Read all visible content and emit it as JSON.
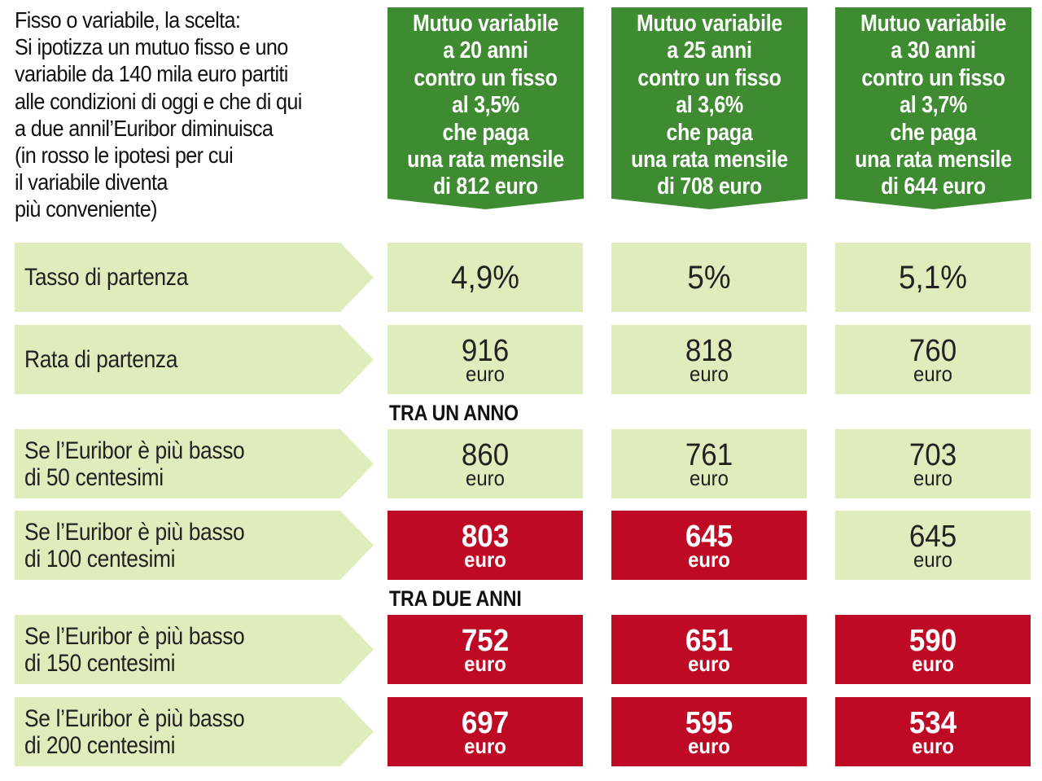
{
  "intro_lines": [
    "Fisso o variabile, la scelta:",
    "Si ipotizza un mutuo fisso e uno",
    "variabile da 140 mila euro partiti",
    "alle condizioni di oggi e che di qui",
    "a due annil’Euribor diminuisca",
    "(in rosso le ipotesi per cui",
    "il variabile diventa",
    "più conveniente)"
  ],
  "columns": [
    {
      "lines": [
        "Mutuo variabile",
        "a 20 anni",
        "contro un fisso",
        "al 3,5%",
        "che paga",
        "una rata mensile",
        "di 812 euro"
      ]
    },
    {
      "lines": [
        "Mutuo variabile",
        "a 25 anni",
        "contro un fisso",
        "al 3,6%",
        "che paga",
        "una rata mensile",
        "di 708 euro"
      ]
    },
    {
      "lines": [
        "Mutuo variabile",
        "a 30 anni",
        "contro un fisso",
        "al 3,7%",
        "che paga",
        "una rata mensile",
        "di 644 euro"
      ]
    }
  ],
  "unit": "euro",
  "sections": {
    "one_year": "TRA UN ANNO",
    "two_years": "TRA DUE ANNI"
  },
  "rows": [
    {
      "label": [
        "Tasso di partenza"
      ],
      "cells": [
        {
          "value": "4,9%",
          "highlight": false
        },
        {
          "value": "5%",
          "highlight": false
        },
        {
          "value": "5,1%",
          "highlight": false
        }
      ]
    },
    {
      "label": [
        "Rata di partenza"
      ],
      "cells": [
        {
          "value": "916",
          "highlight": false
        },
        {
          "value": "818",
          "highlight": false
        },
        {
          "value": "760",
          "highlight": false
        }
      ]
    },
    {
      "label": [
        "Se l’Euribor è più basso",
        "di 50 centesimi"
      ],
      "cells": [
        {
          "value": "860",
          "highlight": false
        },
        {
          "value": "761",
          "highlight": false
        },
        {
          "value": "703",
          "highlight": false
        }
      ]
    },
    {
      "label": [
        "Se l’Euribor è più basso",
        "di 100 centesimi"
      ],
      "cells": [
        {
          "value": "803",
          "highlight": true
        },
        {
          "value": "645",
          "highlight": true
        },
        {
          "value": "645",
          "highlight": false
        }
      ]
    },
    {
      "label": [
        "Se l’Euribor è più basso",
        "di 150 centesimi"
      ],
      "cells": [
        {
          "value": "752",
          "highlight": true
        },
        {
          "value": "651",
          "highlight": true
        },
        {
          "value": "590",
          "highlight": true
        }
      ]
    },
    {
      "label": [
        "Se l’Euribor è più basso",
        "di 200 centesimi"
      ],
      "cells": [
        {
          "value": "697",
          "highlight": true
        },
        {
          "value": "595",
          "highlight": true
        },
        {
          "value": "534",
          "highlight": true
        }
      ]
    }
  ],
  "colors": {
    "header_green": "#3f8b32",
    "light_green": "#dfedbc",
    "highlight_red": "#bf0a26"
  }
}
